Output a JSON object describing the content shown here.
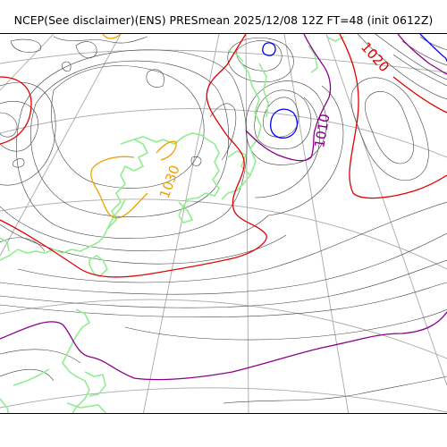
{
  "header": {
    "title": "NCEP(See disclaimer)(ENS) PRESmean 2025/12/08 12Z FT=48 (init 0612Z)"
  },
  "map": {
    "contour_labels": [
      {
        "name": "contour-label-1020",
        "text": "1020",
        "color": "#e00000"
      },
      {
        "name": "contour-label-1010",
        "text": "1010",
        "color": "#8b008b"
      },
      {
        "name": "contour-label-1030",
        "text": "1030",
        "color": "#f0a000"
      }
    ],
    "colors": {
      "coastline": "#90ee90",
      "isobar": "#404040",
      "graticule": "#a9a9a9",
      "isobar_1020": "#e00000",
      "isobar_1010": "#8b008b",
      "isobar_1030": "#f0a000",
      "low_center": "#0000ff"
    }
  }
}
